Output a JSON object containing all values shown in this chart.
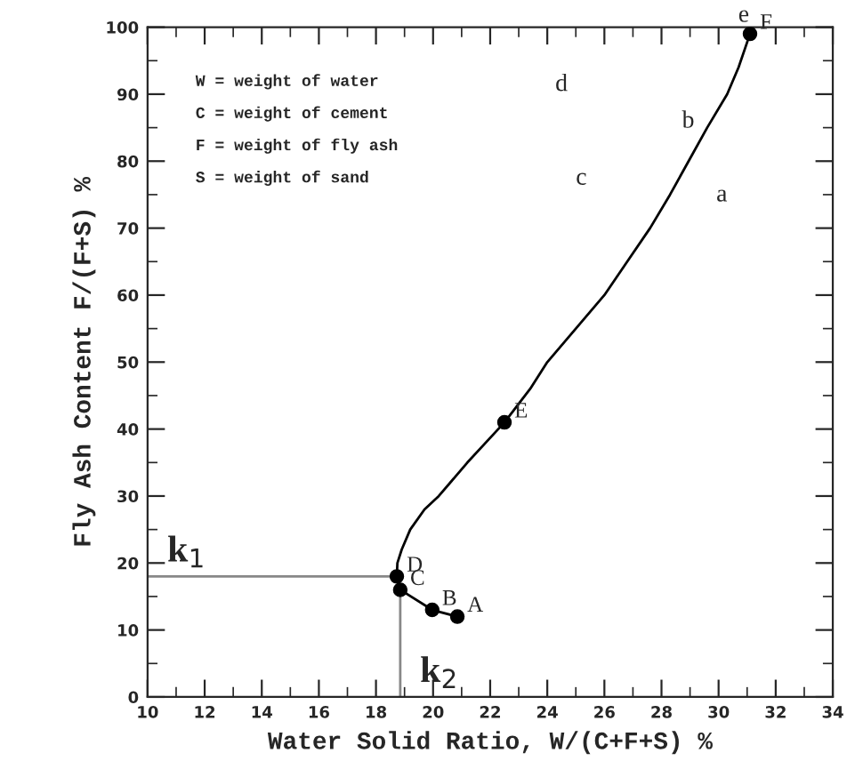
{
  "chart_data": {
    "type": "line",
    "xlabel": "Water Solid Ratio, W/(C+F+S) %",
    "ylabel": "Fly Ash Content F/(F+S) %",
    "xlim": [
      10,
      34
    ],
    "ylim": [
      0,
      100
    ],
    "xticks": [
      10,
      12,
      14,
      16,
      18,
      20,
      22,
      24,
      26,
      28,
      30,
      32,
      34
    ],
    "yticks": [
      0,
      10,
      20,
      30,
      40,
      50,
      60,
      70,
      80,
      90,
      100
    ],
    "grid": false,
    "series": [
      {
        "color": "#000000",
        "line_style": "solid",
        "x": [
          20.85,
          19.97,
          18.85,
          18.73,
          18.75,
          18.9,
          19.2,
          19.7,
          20.2,
          21.2,
          22.5,
          23.4,
          24.0,
          25.0,
          26.0,
          26.8,
          27.6,
          28.3,
          28.95,
          29.6,
          30.3,
          30.7,
          31.1
        ],
        "values": [
          12,
          13,
          16,
          18,
          20,
          22,
          25,
          28,
          30,
          35,
          41,
          46,
          50,
          55,
          60,
          65,
          70,
          75,
          80,
          85,
          90,
          94,
          99
        ]
      },
      {
        "type": "scatter",
        "color": "#000000",
        "marker": "circle",
        "x": [
          20.85,
          19.97,
          18.85,
          18.73,
          22.5,
          31.1
        ],
        "values": [
          12,
          13,
          16,
          18,
          41,
          99
        ]
      },
      {
        "type": "line",
        "name": "k$_{1}$",
        "color": "#888888",
        "line_style": "solid",
        "x": [
          10,
          18.73
        ],
        "values": [
          18,
          18
        ]
      },
      {
        "type": "line",
        "name": "k$_{2}$",
        "color": "#888888",
        "line_style": "solid",
        "x": [
          18.85,
          18.85
        ],
        "values": [
          0,
          16
        ]
      }
    ],
    "annotations": [
      "W = weight of water",
      "C = weight of cement",
      "F = weight of fly ash",
      "S = weight of sand",
      {
        "text": "A",
        "x": 20.85,
        "y": 12
      },
      {
        "text": "B",
        "x": 19.97,
        "y": 13
      },
      {
        "text": "C",
        "x": 18.85,
        "y": 16
      },
      {
        "text": "D",
        "x": 18.73,
        "y": 18
      },
      {
        "text": "E",
        "x": 22.5,
        "y": 41
      },
      {
        "text": "F",
        "x": 31.1,
        "y": 99
      },
      "a",
      "b",
      "c",
      "d",
      "e"
    ]
  }
}
